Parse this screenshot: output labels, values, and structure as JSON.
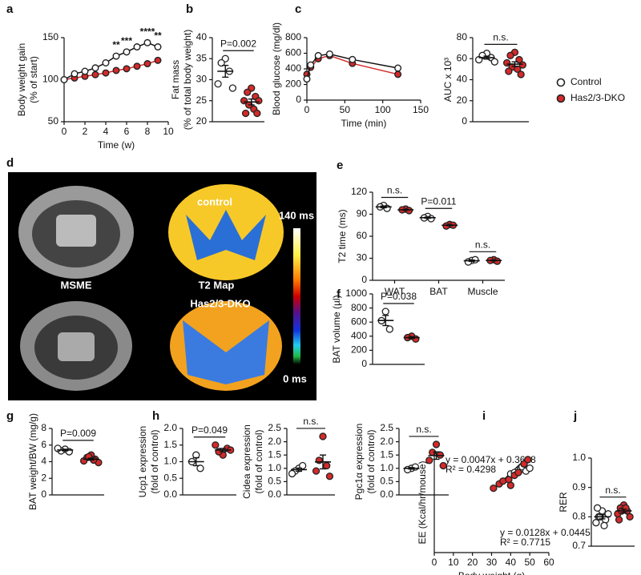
{
  "chart_data": [
    {
      "type": "line",
      "label": "a",
      "xlabel": "Time (w)",
      "ylabel": [
        "Body weight gain",
        "(% of start)"
      ],
      "x": [
        0,
        1,
        2,
        3,
        4,
        5,
        6,
        7,
        8,
        9
      ],
      "xlim": [
        0,
        10
      ],
      "xticks": [
        0,
        2,
        4,
        6,
        8,
        10
      ],
      "ylim": [
        50,
        150
      ],
      "yticks": [
        50,
        100,
        150
      ],
      "series": [
        {
          "color": "#ffffff",
          "values": [
            100,
            107,
            110,
            114,
            120,
            128,
            133,
            139,
            144,
            139
          ],
          "errors": [
            1,
            2,
            2,
            3,
            3,
            4,
            4,
            4,
            4,
            4
          ]
        },
        {
          "color": "#d42a2a",
          "values": [
            100,
            102,
            104,
            106,
            108,
            111,
            113,
            116,
            119,
            123
          ],
          "errors": [
            1,
            1,
            1,
            2,
            2,
            2,
            2,
            2,
            3,
            3
          ]
        }
      ],
      "annotations": [
        {
          "text": "**",
          "x": 5
        },
        {
          "text": "***",
          "x": 6
        },
        {
          "text": "****",
          "x": 8
        },
        {
          "text": "**",
          "x": 9
        }
      ]
    },
    {
      "type": "dot",
      "label": "b",
      "ylabel": [
        "Fat mass",
        "(% of total body weight)"
      ],
      "ylim": [
        20,
        40
      ],
      "yticks": [
        20,
        25,
        30,
        35,
        40
      ],
      "series": [
        {
          "color": "#ffffff",
          "values": [
            [
              35,
              34,
              32,
              29,
              28
            ]
          ],
          "mean": [
            32
          ],
          "sem": [
            1.4
          ]
        },
        {
          "color": "#d42a2a",
          "values": [
            [
              28,
              27,
              26,
              25,
              25,
              24,
              23,
              22,
              22
            ]
          ],
          "mean": [
            24.7
          ],
          "sem": [
            0.7
          ]
        }
      ],
      "annotations": [
        "P=0.002"
      ]
    },
    {
      "type": "line",
      "label": "c",
      "xlabel": "Time (min)",
      "ylabel": [
        "Blood glucose (mg/dl)"
      ],
      "x": [
        0,
        5,
        15,
        30,
        60,
        120
      ],
      "xlim": [
        0,
        150
      ],
      "xticks": [
        0,
        50,
        100,
        150
      ],
      "ylim": [
        0,
        800
      ],
      "yticks": [
        0,
        200,
        400,
        600,
        800
      ],
      "series": [
        {
          "color": "#ffffff",
          "values": [
            270,
            450,
            570,
            590,
            520,
            410
          ]
        },
        {
          "color": "#d42a2a",
          "values": [
            330,
            420,
            530,
            570,
            470,
            330
          ]
        }
      ]
    },
    {
      "type": "dot",
      "ylabel": [
        "AUC x 10³"
      ],
      "ylim": [
        0,
        80
      ],
      "yticks": [
        0,
        20,
        40,
        60,
        80
      ],
      "legend": true,
      "series": [
        {
          "name": "Control",
          "color": "#ffffff",
          "values": [
            [
              65,
              63,
              61,
              59,
              57
            ]
          ],
          "mean": [
            61
          ],
          "sem": [
            1.4
          ]
        },
        {
          "name": "Has2/3-DKO",
          "color": "#d42a2a",
          "values": [
            [
              66,
              63,
              59,
              56,
              54,
              52,
              50,
              48,
              45
            ]
          ],
          "mean": [
            54.8
          ],
          "sem": [
            2.2
          ]
        }
      ],
      "annotations": [
        "n.s."
      ]
    },
    {
      "type": "dot",
      "label": "e",
      "ylabel": [
        "T2 time (ms)"
      ],
      "categories": [
        "WAT",
        "BAT",
        "Muscle"
      ],
      "ylim": [
        0,
        120
      ],
      "yticks": [
        0,
        30,
        60,
        90,
        120
      ],
      "series": [
        {
          "color": "#ffffff",
          "values": [
            [
              102,
              100,
              98
            ],
            [
              87,
              85,
              84
            ],
            [
              27,
              25,
              28
            ]
          ],
          "mean": [
            100,
            85.3,
            26.7
          ],
          "sem": [
            1.2,
            0.9,
            0.9
          ]
        },
        {
          "color": "#d42a2a",
          "values": [
            [
              97,
              96,
              95
            ],
            [
              76,
              74,
              75
            ],
            [
              28,
              27,
              26
            ]
          ],
          "mean": [
            96,
            75,
            27
          ],
          "sem": [
            0.6,
            0.6,
            0.6
          ]
        }
      ],
      "annotations": [
        "n.s.",
        "P=0.011",
        "n.s."
      ]
    },
    {
      "type": "dot",
      "label": "f",
      "ylabel": [
        "BAT volume (µl)"
      ],
      "ylim": [
        0,
        1000
      ],
      "yticks": [
        0,
        200,
        400,
        600,
        800,
        1000
      ],
      "series": [
        {
          "color": "#ffffff",
          "values": [
            [
              750,
              620,
              500
            ]
          ],
          "mean": [
            623
          ],
          "sem": [
            72
          ]
        },
        {
          "color": "#d42a2a",
          "values": [
            [
              400,
              380,
              360
            ]
          ],
          "mean": [
            380
          ],
          "sem": [
            12
          ]
        }
      ],
      "annotations": [
        "P=0.038"
      ]
    },
    {
      "type": "dot",
      "label": "g",
      "ylabel": [
        "BAT weight/BW (mg/g)"
      ],
      "ylim": [
        0,
        8
      ],
      "yticks": [
        0,
        2,
        4,
        6,
        8
      ],
      "series": [
        {
          "color": "#ffffff",
          "values": [
            [
              5.5,
              5.3,
              5.2,
              5.6
            ]
          ],
          "mean": [
            5.4
          ],
          "sem": [
            0.1
          ]
        },
        {
          "color": "#d42a2a",
          "values": [
            [
              4.8,
              4.5,
              4.3,
              4.1,
              3.9,
              4.6,
              4.2
            ]
          ],
          "mean": [
            4.3
          ],
          "sem": [
            0.12
          ]
        }
      ],
      "annotations": [
        "P=0.009"
      ]
    },
    {
      "type": "dot",
      "label": "h",
      "ylabel": [
        "Ucp1 expression",
        "(fold of control)"
      ],
      "ylim": [
        0,
        2
      ],
      "yticks": [
        {
          "value": 0,
          "label": "0.0"
        },
        0.5,
        {
          "value": 1,
          "label": "1.0"
        },
        1.5,
        {
          "value": 2,
          "label": "2.0"
        }
      ],
      "series": [
        {
          "color": "#ffffff",
          "values": [
            [
              1.2,
              1.0,
              0.8
            ]
          ],
          "mean": [
            1.0
          ],
          "sem": [
            0.12
          ]
        },
        {
          "color": "#d42a2a",
          "values": [
            [
              1.2,
              1.3,
              1.4,
              1.5,
              1.35
            ]
          ],
          "mean": [
            1.35
          ],
          "sem": [
            0.05
          ]
        }
      ],
      "annotations": [
        "P=0.049"
      ]
    },
    {
      "type": "dot",
      "ylabel": [
        "Cidea expression",
        "(fold of control)"
      ],
      "ylim": [
        0,
        2.5
      ],
      "yticks": [
        {
          "value": 0,
          "label": "0.0"
        },
        0.5,
        {
          "value": 1,
          "label": "1.0"
        },
        1.5,
        {
          "value": 2,
          "label": "2.0"
        },
        2.5
      ],
      "series": [
        {
          "color": "#ffffff",
          "values": [
            [
              1.0,
              0.9,
              1.1,
              0.8
            ]
          ],
          "mean": [
            0.95
          ],
          "sem": [
            0.06
          ]
        },
        {
          "color": "#d42a2a",
          "values": [
            [
              2.2,
              1.3,
              1.1,
              0.9,
              0.7
            ]
          ],
          "mean": [
            1.24
          ],
          "sem": [
            0.26
          ]
        }
      ],
      "annotations": [
        "n.s."
      ]
    },
    {
      "type": "dot",
      "ylabel": [
        "Pgc1α expression",
        "(fold of control)"
      ],
      "ylim": [
        0,
        2.5
      ],
      "yticks": [
        {
          "value": 0,
          "label": "0.0"
        },
        0.5,
        {
          "value": 1,
          "label": "1.0"
        },
        1.5,
        {
          "value": 2,
          "label": "2.0"
        },
        2.5
      ],
      "series": [
        {
          "color": "#ffffff",
          "values": [
            [
              1.0,
              0.95,
              1.05
            ]
          ],
          "mean": [
            1.0
          ],
          "sem": [
            0.03
          ]
        },
        {
          "color": "#d42a2a",
          "values": [
            [
              1.9,
              1.6,
              1.5,
              1.3,
              1.1
            ]
          ],
          "mean": [
            1.48
          ],
          "sem": [
            0.14
          ]
        }
      ],
      "annotations": [
        "n.s."
      ]
    },
    {
      "type": "scatter",
      "label": "i",
      "xlabel": "Body weight (g)",
      "ylabel": [
        "EE (Kcal/hr/mouse)"
      ],
      "xlim": [
        0,
        60
      ],
      "xticks": [
        0,
        10,
        20,
        30,
        40,
        50,
        60
      ],
      "ylim": [
        0,
        0.7
      ],
      "series": [
        {
          "color": "#ffffff",
          "x": [
            40,
            42,
            44,
            45,
            46,
            48,
            50,
            47
          ],
          "values": [
            0.55,
            0.56,
            0.56,
            0.58,
            0.6,
            0.57,
            0.59,
            0.62
          ]
        },
        {
          "color": "#d42a2a",
          "x": [
            31,
            34,
            36,
            39,
            40,
            42,
            44,
            47,
            49
          ],
          "values": [
            0.45,
            0.48,
            0.5,
            0.51,
            0.47,
            0.54,
            0.56,
            0.62,
            0.65
          ]
        }
      ],
      "fits": [
        {
          "label": "y = 0.0047x + 0.3628",
          "r2": "R² = 0.4298",
          "slope": 0.0047,
          "intercept": 0.3628
        },
        {
          "label": "y = 0.0128x + 0.0445",
          "r2": "R² = 0.7715",
          "slope": 0.0128,
          "intercept": 0.0445
        }
      ]
    },
    {
      "type": "dot",
      "label": "j",
      "ylabel": [
        "RER"
      ],
      "ylim": [
        0.7,
        1.0
      ],
      "yticks": [
        0.7,
        0.8,
        0.9,
        {
          "value": 1,
          "label": "1.0"
        }
      ],
      "series": [
        {
          "color": "#ffffff",
          "values": [
            [
              0.82,
              0.8,
              0.79,
              0.78,
              0.81,
              0.8,
              0.77,
              0.83
            ]
          ],
          "mean": [
            0.8
          ],
          "sem": [
            0.007
          ]
        },
        {
          "color": "#d42a2a",
          "values": [
            [
              0.84,
              0.83,
              0.82,
              0.81,
              0.8,
              0.82,
              0.83,
              0.79
            ]
          ],
          "mean": [
            0.82
          ],
          "sem": [
            0.006
          ]
        }
      ],
      "annotations": [
        "n.s."
      ]
    }
  ],
  "mri_panel": {
    "label": "d",
    "control": "control",
    "msme": "MSME",
    "t2": "T2 Map",
    "dko": "Has2/3-DKO",
    "max": "140 ms",
    "min": "0 ms"
  }
}
